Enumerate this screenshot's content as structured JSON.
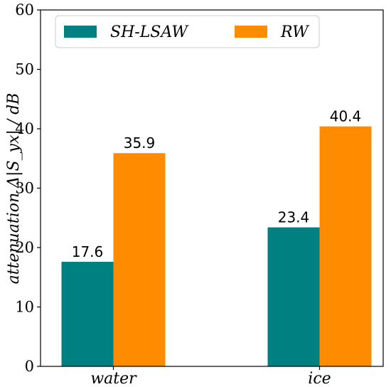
{
  "chart_data": {
    "type": "bar",
    "categories": [
      "water",
      "ice"
    ],
    "series": [
      {
        "name": "SH-LSAW",
        "values": [
          17.6,
          23.4
        ],
        "value_labels": [
          "17.6",
          "23.4"
        ],
        "color": "#008080"
      },
      {
        "name": "RW",
        "values": [
          35.9,
          40.4
        ],
        "value_labels": [
          "35.9",
          "40.4"
        ],
        "color": "#ff8c00"
      }
    ],
    "title": "",
    "xlabel": "",
    "ylabel": "attenuation  Δ|S_yx| / dB",
    "ylim": [
      0,
      60
    ],
    "yticks": [
      0,
      10,
      20,
      30,
      40,
      50,
      60
    ],
    "grid": false,
    "legend_position": "top"
  }
}
